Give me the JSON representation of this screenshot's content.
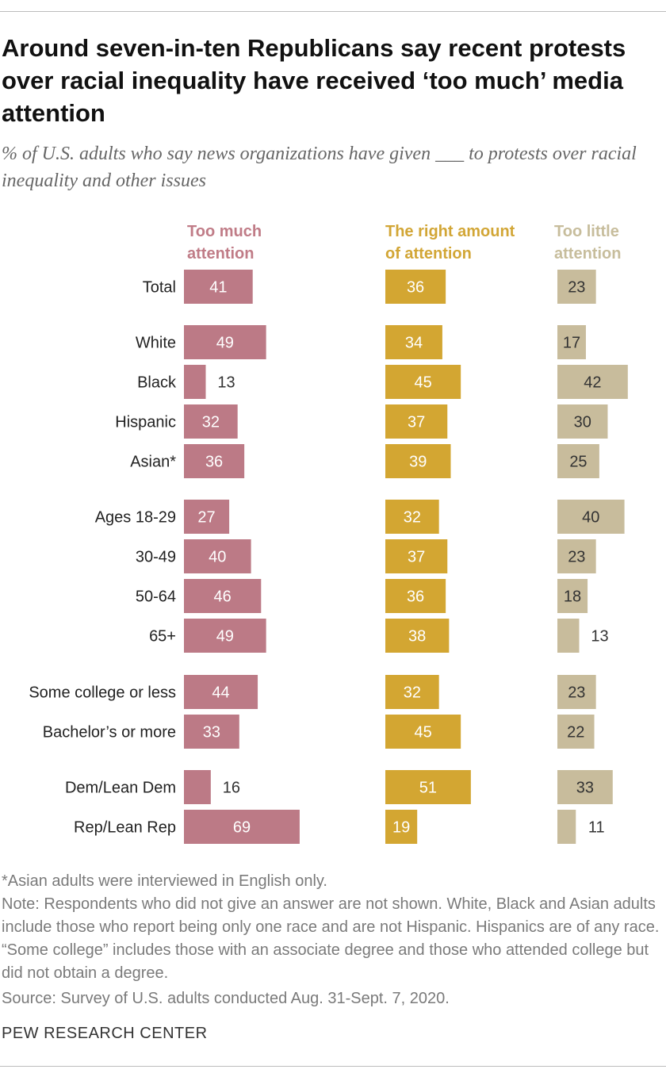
{
  "title": "Around seven-in-ten Republicans say recent protests over racial inequality have received ‘too much’ media attention",
  "subtitle": "% of U.S. adults who say news organizations have given ___ to protests over racial inequality and other issues",
  "chart_data": {
    "type": "bar",
    "orientation": "horizontal",
    "categories": [
      "Total",
      "White",
      "Black",
      "Hispanic",
      "Asian*",
      "Ages 18-29",
      "30-49",
      "50-64",
      "65+",
      "Some college or less",
      "Bachelor’s or more",
      "Dem/Lean Dem",
      "Rep/Lean Rep"
    ],
    "series": [
      {
        "name": "Too much attention",
        "color": "#bc7a86",
        "values": [
          41,
          49,
          13,
          32,
          36,
          27,
          40,
          46,
          49,
          44,
          33,
          16,
          69
        ]
      },
      {
        "name": "The right amount of attention",
        "color": "#d3a632",
        "values": [
          36,
          34,
          45,
          37,
          39,
          32,
          37,
          36,
          38,
          32,
          45,
          51,
          19
        ]
      },
      {
        "name": "Too little attention",
        "color": "#c8bc9c",
        "values": [
          23,
          17,
          42,
          30,
          25,
          40,
          23,
          18,
          13,
          23,
          22,
          33,
          11
        ]
      }
    ],
    "xlabel": "",
    "ylabel": "",
    "grid": false,
    "legend": "top"
  },
  "column_headers": {
    "much": [
      "Too much",
      "attention"
    ],
    "right": [
      "The right amount",
      "of attention"
    ],
    "little": [
      "Too little",
      "attention"
    ]
  },
  "footnote": "*Asian adults were interviewed in English only.",
  "note": "Note: Respondents who did not give an answer are not shown. White, Black and Asian adults include those who report being only one race and are not Hispanic. Hispanics are of any race. “Some college” includes those with an associate degree and those who attended college but did not obtain a degree.",
  "source": "Source: Survey of U.S. adults conducted Aug. 31-Sept. 7, 2020.",
  "credit": "PEW RESEARCH CENTER"
}
